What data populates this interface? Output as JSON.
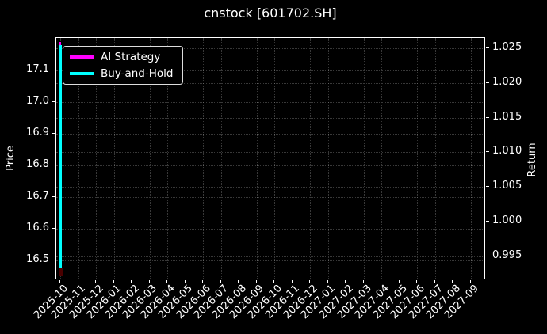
{
  "chart_data": {
    "type": "line",
    "title": "cnstock [601702.SH]",
    "ylabel_left": "Price",
    "ylabel_right": "Return",
    "background_color": "#000000",
    "text_color": "#ffffff",
    "axis_color": "#ffffff",
    "grid_color": "#ffffff",
    "grid_alpha": 0.22,
    "grid": true,
    "left_ticks": [
      "17.1",
      "17.0",
      "16.9",
      "16.8",
      "16.7",
      "16.6",
      "16.5"
    ],
    "right_ticks": [
      "1.025",
      "1.020",
      "1.015",
      "1.010",
      "1.005",
      "1.000",
      "0.995"
    ],
    "left_range": [
      16.4375,
      17.2025
    ],
    "right_range": [
      0.99155,
      1.02648
    ],
    "x_tick_labels": [
      "2025-10",
      "2025-11",
      "2025-12",
      "2026-01",
      "2026-02",
      "2026-03",
      "2026-04",
      "2026-05",
      "2026-06",
      "2026-07",
      "2026-08",
      "2026-09",
      "2026-10",
      "2026-11",
      "2026-12",
      "2027-01",
      "2027-02",
      "2027-03",
      "2027-04",
      "2027-05",
      "2027-06",
      "2027-07",
      "2027-08",
      "2027-09"
    ],
    "legend": {
      "position": "upper-left"
    },
    "series": [
      {
        "name": "AI Strategy",
        "color": "#ff00ff",
        "axis": "left",
        "in_legend": true,
        "segments": [
          {
            "x_month": -0.04,
            "from": 17.19,
            "to": 17.06,
            "w": 3
          },
          {
            "x_month": -0.06,
            "from": 16.515,
            "to": 16.49,
            "w": 2
          }
        ]
      },
      {
        "name": "Buy-and-Hold",
        "color": "#00ffff",
        "axis": "left",
        "in_legend": true,
        "segments": [
          {
            "x_month": 0,
            "from": 17.18,
            "to": 16.475,
            "w": 3
          }
        ]
      },
      {
        "name": "",
        "color": "#cc0000",
        "axis": "left",
        "in_legend": false,
        "segments": [
          {
            "x_month": 0.15,
            "from": 17.18,
            "to": 16.455,
            "w": 1.5
          },
          {
            "x_month": 0.05,
            "from": 16.478,
            "to": 16.45,
            "w": 4,
            "color": "#4a0000"
          }
        ]
      }
    ]
  }
}
